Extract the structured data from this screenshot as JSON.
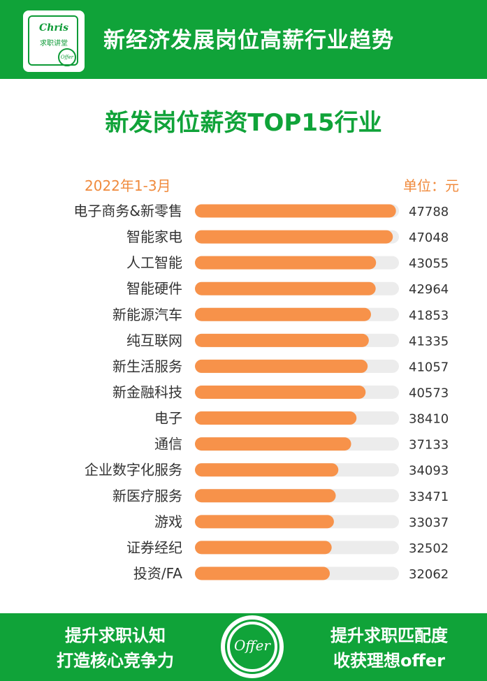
{
  "header": {
    "title": "新经济发展岗位高薪行业趋势",
    "logo": {
      "brand": "Chris",
      "sub": "求职讲堂",
      "badge": "Offer"
    }
  },
  "colors": {
    "brand_green": "#10a339",
    "bar": "#f7924a",
    "track": "#ececec",
    "accent_text": "#f08a3c"
  },
  "chart_data": {
    "type": "bar",
    "orientation": "horizontal",
    "title": "新发岗位薪资TOP15行业",
    "subtitle": "2022年1-3月",
    "unit_label": "单位：元",
    "categories": [
      "电子商务&新零售",
      "智能家电",
      "人工智能",
      "智能硬件",
      "新能源汽车",
      "纯互联网",
      "新生活服务",
      "新金融科技",
      "电子",
      "通信",
      "企业数字化服务",
      "新医疗服务",
      "游戏",
      "证券经纪",
      "投资/FA"
    ],
    "values": [
      47788,
      47048,
      43055,
      42964,
      41853,
      41335,
      41057,
      40573,
      38410,
      37133,
      34093,
      33471,
      33037,
      32502,
      32062
    ],
    "value_labels": [
      "47788",
      "47048",
      "43055",
      "42964",
      "41853",
      "41335",
      "41057",
      "40573",
      "38410",
      "37133",
      "34093",
      "33471",
      "33037",
      "32502",
      "32062"
    ],
    "xlim": [
      0,
      48500
    ],
    "grid": false,
    "legend": "none"
  },
  "footer": {
    "left_line1": "提升求职认知",
    "left_line2": "打造核心竞争力",
    "badge": "Offer",
    "right_line1": "提升求职匹配度",
    "right_line2": "收获理想offer"
  }
}
